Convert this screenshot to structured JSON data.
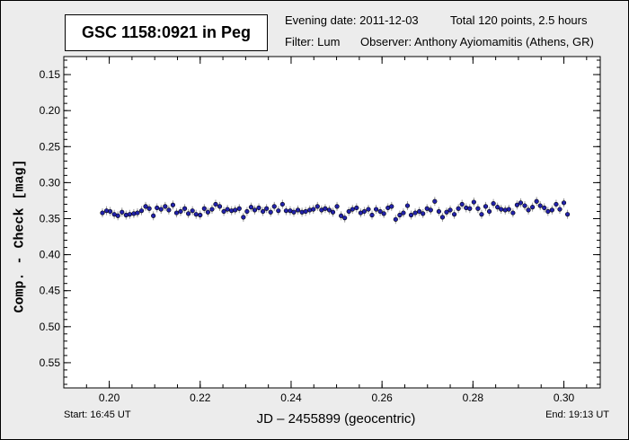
{
  "header": {
    "title": "GSC 1158:0921 in Peg",
    "evening_date": "Evening date: 2011-12-03",
    "total_points": "Total 120 points, 2.5 hours",
    "filter": "Filter: Lum",
    "observer": "Observer: Anthony Ayiomamitis (Athens, GR)"
  },
  "footer": {
    "start": "Start: 16:45 UT",
    "end": "End: 19:13 UT"
  },
  "colors": {
    "point_fill": "#2222aa",
    "error_bar": "#999999",
    "frame_bg": "#ececec",
    "plot_bg": "#ffffff"
  },
  "chart_data": {
    "type": "scatter",
    "xlabel": "JD – 2455899  (geocentric)",
    "ylabel": "Comp. - Check [mag]",
    "xlim": [
      0.19,
      0.308
    ],
    "ylim": [
      0.585,
      0.125
    ],
    "y_inverted": true,
    "xticks": [
      0.2,
      0.22,
      0.24,
      0.26,
      0.28,
      0.3
    ],
    "xtick_labels": [
      "0.20",
      "0.22",
      "0.24",
      "0.26",
      "0.28",
      "0.30"
    ],
    "yticks": [
      0.15,
      0.2,
      0.25,
      0.3,
      0.35,
      0.4,
      0.45,
      0.5,
      0.55
    ],
    "ytick_labels": [
      "0.15",
      "0.20",
      "0.25",
      "0.30",
      "0.35",
      "0.40",
      "0.45",
      "0.50",
      "0.55"
    ],
    "grid": false,
    "series": [
      {
        "x": [
          0.1985,
          0.1994,
          0.2002,
          0.2011,
          0.2019,
          0.2028,
          0.2037,
          0.2045,
          0.2054,
          0.2062,
          0.2071,
          0.208,
          0.2088,
          0.2097,
          0.2105,
          0.2114,
          0.2123,
          0.2131,
          0.214,
          0.2148,
          0.2157,
          0.2166,
          0.2174,
          0.2183,
          0.2191,
          0.22,
          0.2209,
          0.2217,
          0.2226,
          0.2234,
          0.2243,
          0.2252,
          0.226,
          0.2269,
          0.2277,
          0.2286,
          0.2295,
          0.2303,
          0.2312,
          0.232,
          0.2329,
          0.2338,
          0.2346,
          0.2355,
          0.2363,
          0.2372,
          0.2381,
          0.2389,
          0.2398,
          0.2406,
          0.2415,
          0.2424,
          0.2432,
          0.2441,
          0.2449,
          0.2458,
          0.2467,
          0.2475,
          0.2484,
          0.2492,
          0.2501,
          0.251,
          0.2518,
          0.2527,
          0.2535,
          0.2544,
          0.2553,
          0.2561,
          0.257,
          0.2578,
          0.2587,
          0.2596,
          0.2604,
          0.2613,
          0.2621,
          0.263,
          0.2639,
          0.2647,
          0.2656,
          0.2664,
          0.2673,
          0.2682,
          0.269,
          0.2699,
          0.2707,
          0.2716,
          0.2725,
          0.2733,
          0.2742,
          0.275,
          0.2759,
          0.2768,
          0.2776,
          0.2785,
          0.2793,
          0.2802,
          0.2811,
          0.2819,
          0.2828,
          0.2836,
          0.2845,
          0.2854,
          0.2862,
          0.2871,
          0.2879,
          0.2888,
          0.2897,
          0.2905,
          0.2914,
          0.2922,
          0.2931,
          0.294,
          0.2948,
          0.2957,
          0.2965,
          0.2974,
          0.2983,
          0.2991,
          0.3,
          0.3008
        ],
        "y": [
          0.342,
          0.339,
          0.34,
          0.344,
          0.346,
          0.341,
          0.345,
          0.344,
          0.343,
          0.342,
          0.339,
          0.333,
          0.336,
          0.346,
          0.335,
          0.337,
          0.333,
          0.338,
          0.331,
          0.342,
          0.34,
          0.336,
          0.343,
          0.339,
          0.344,
          0.345,
          0.336,
          0.341,
          0.337,
          0.33,
          0.333,
          0.34,
          0.337,
          0.339,
          0.338,
          0.336,
          0.348,
          0.34,
          0.334,
          0.338,
          0.335,
          0.34,
          0.336,
          0.341,
          0.333,
          0.339,
          0.33,
          0.339,
          0.339,
          0.341,
          0.338,
          0.341,
          0.34,
          0.338,
          0.337,
          0.333,
          0.338,
          0.336,
          0.338,
          0.341,
          0.333,
          0.346,
          0.349,
          0.34,
          0.337,
          0.335,
          0.342,
          0.34,
          0.337,
          0.345,
          0.337,
          0.34,
          0.343,
          0.335,
          0.333,
          0.351,
          0.345,
          0.342,
          0.332,
          0.345,
          0.342,
          0.34,
          0.343,
          0.336,
          0.338,
          0.326,
          0.34,
          0.348,
          0.341,
          0.338,
          0.344,
          0.336,
          0.33,
          0.335,
          0.336,
          0.327,
          0.336,
          0.344,
          0.333,
          0.34,
          0.329,
          0.334,
          0.337,
          0.338,
          0.337,
          0.342,
          0.331,
          0.328,
          0.332,
          0.338,
          0.334,
          0.326,
          0.332,
          0.335,
          0.34,
          0.338,
          0.33,
          0.337,
          0.328,
          0.344
        ]
      }
    ]
  }
}
